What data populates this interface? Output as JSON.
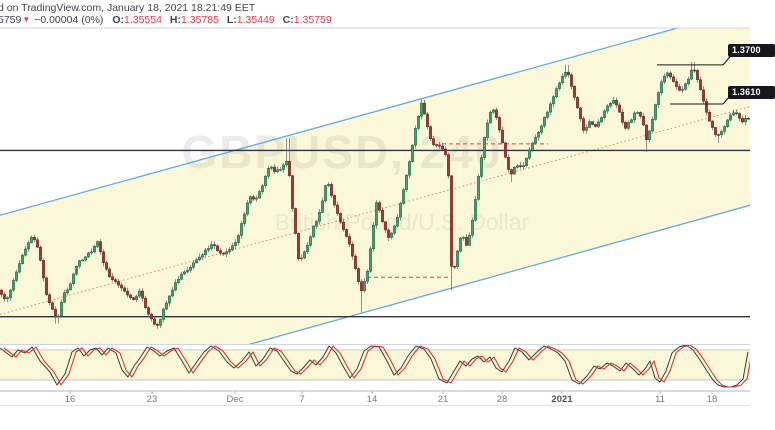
{
  "header": {
    "line1": "d on TradingView.com, January 18, 2021 18:21:49 EET",
    "symbol_price_partial": "5759",
    "direction_arrow": "▼",
    "change": "−0.00004 (0%)",
    "ohlc": [
      {
        "label": "O:",
        "value": "1.35554"
      },
      {
        "label": "H:",
        "value": "1.35785"
      },
      {
        "label": "L:",
        "value": "1.35449"
      },
      {
        "label": "C:",
        "value": "1.35759"
      }
    ]
  },
  "watermark": {
    "line1": "GBPUSD, 240",
    "line2": "British Pound/U.S. Dollar"
  },
  "price_labels": [
    {
      "text": "1.3700"
    },
    {
      "text": "1.3610"
    }
  ],
  "colors": {
    "up_fill": "#4f9e6e",
    "up_border": "#1d6b45",
    "down_fill": "#a03a36",
    "down_border": "#6e2320",
    "wick": "#60636e",
    "channel_line": "#64a9e0",
    "channel_fill": "#fbf8d9",
    "mid_dotted": "#ef8073",
    "level_black": "#2e333e",
    "dashed_red": "#f23645",
    "stoch_k": "#3c3b33",
    "stoch_d": "#e0342f",
    "band_line": "#b2b5be",
    "divider": "#d1d4dc",
    "accent_red": "#f23645",
    "text_dark": "#434651",
    "axis_text": "#787b86"
  },
  "chart_data": {
    "type": "candlestick+stochastic",
    "symbol": "GBPUSD",
    "interval": "240",
    "ylim": [
      1.3056,
      1.3785
    ],
    "ohlc_last": {
      "open": 1.35554,
      "high": 1.35785,
      "low": 1.35449,
      "close": 1.35759
    },
    "channel": {
      "x1": 0,
      "x2": 750,
      "upper": {
        "p1": 1.33537,
        "p2": 1.38311
      },
      "lower": {
        "p1": 1.28968,
        "p2": 1.33767
      }
    },
    "levels_full": [
      {
        "price": 1.3503
      },
      {
        "price": 1.312
      }
    ],
    "levels_short": [
      {
        "price": 1.37,
        "x1": 657,
        "x2": 723,
        "label": "1.3700"
      },
      {
        "price": 1.361,
        "x1": 670,
        "x2": 723,
        "label": "1.3610"
      }
    ],
    "dashed_segments": [
      {
        "price": 1.3518,
        "x1": 442,
        "x2": 548
      },
      {
        "price": 1.3211,
        "x1": 367,
        "x2": 452
      }
    ],
    "price_path": [
      [
        0,
        1.3181
      ],
      [
        6,
        1.3153
      ],
      [
        12,
        1.3192
      ],
      [
        20,
        1.3245
      ],
      [
        27,
        1.3287
      ],
      [
        33,
        1.3305
      ],
      [
        39,
        1.3273
      ],
      [
        46,
        1.3176
      ],
      [
        52,
        1.3139
      ],
      [
        57,
        1.3109
      ],
      [
        63,
        1.3167
      ],
      [
        70,
        1.3194
      ],
      [
        78,
        1.3243
      ],
      [
        86,
        1.3261
      ],
      [
        93,
        1.3273
      ],
      [
        97,
        1.3298
      ],
      [
        103,
        1.3247
      ],
      [
        110,
        1.3211
      ],
      [
        118,
        1.3197
      ],
      [
        126,
        1.3176
      ],
      [
        133,
        1.3155
      ],
      [
        140,
        1.3178
      ],
      [
        147,
        1.3128
      ],
      [
        153,
        1.3107
      ],
      [
        158,
        1.3097
      ],
      [
        164,
        1.3141
      ],
      [
        171,
        1.3178
      ],
      [
        179,
        1.3211
      ],
      [
        188,
        1.3231
      ],
      [
        197,
        1.325
      ],
      [
        206,
        1.3273
      ],
      [
        213,
        1.3289
      ],
      [
        220,
        1.3266
      ],
      [
        228,
        1.3268
      ],
      [
        236,
        1.3291
      ],
      [
        243,
        1.3344
      ],
      [
        249,
        1.3397
      ],
      [
        255,
        1.3388
      ],
      [
        262,
        1.342
      ],
      [
        269,
        1.3467
      ],
      [
        276,
        1.3453
      ],
      [
        283,
        1.3467
      ],
      [
        288,
        1.3485
      ],
      [
        293,
        1.3354
      ],
      [
        299,
        1.3247
      ],
      [
        306,
        1.3273
      ],
      [
        313,
        1.3324
      ],
      [
        320,
        1.3361
      ],
      [
        327,
        1.3441
      ],
      [
        333,
        1.3384
      ],
      [
        341,
        1.3335
      ],
      [
        349,
        1.3289
      ],
      [
        356,
        1.3227
      ],
      [
        361,
        1.3178
      ],
      [
        367,
        1.3215
      ],
      [
        372,
        1.3307
      ],
      [
        377,
        1.3392
      ],
      [
        382,
        1.3342
      ],
      [
        389,
        1.3298
      ],
      [
        396,
        1.3338
      ],
      [
        403,
        1.3404
      ],
      [
        410,
        1.3485
      ],
      [
        416,
        1.3563
      ],
      [
        422,
        1.3614
      ],
      [
        427,
        1.3561
      ],
      [
        432,
        1.3513
      ],
      [
        438,
        1.352
      ],
      [
        444,
        1.3499
      ],
      [
        448,
        1.348
      ],
      [
        452,
        1.3199
      ],
      [
        457,
        1.3268
      ],
      [
        462,
        1.3314
      ],
      [
        467,
        1.328
      ],
      [
        473,
        1.3347
      ],
      [
        479,
        1.3453
      ],
      [
        486,
        1.3554
      ],
      [
        492,
        1.3603
      ],
      [
        498,
        1.3568
      ],
      [
        504,
        1.3503
      ],
      [
        510,
        1.3443
      ],
      [
        516,
        1.3473
      ],
      [
        523,
        1.3462
      ],
      [
        529,
        1.3499
      ],
      [
        536,
        1.3536
      ],
      [
        543,
        1.3568
      ],
      [
        551,
        1.3612
      ],
      [
        559,
        1.3658
      ],
      [
        567,
        1.369
      ],
      [
        572,
        1.3644
      ],
      [
        578,
        1.3598
      ],
      [
        584,
        1.3547
      ],
      [
        590,
        1.357
      ],
      [
        596,
        1.3559
      ],
      [
        602,
        1.3582
      ],
      [
        608,
        1.3605
      ],
      [
        613,
        1.3619
      ],
      [
        619,
        1.3598
      ],
      [
        624,
        1.3552
      ],
      [
        630,
        1.357
      ],
      [
        636,
        1.3593
      ],
      [
        642,
        1.3577
      ],
      [
        647,
        1.3524
      ],
      [
        652,
        1.357
      ],
      [
        657,
        1.3628
      ],
      [
        662,
        1.3663
      ],
      [
        667,
        1.3681
      ],
      [
        672,
        1.3665
      ],
      [
        677,
        1.3646
      ],
      [
        682,
        1.3642
      ],
      [
        688,
        1.3667
      ],
      [
        693,
        1.3695
      ],
      [
        699,
        1.3656
      ],
      [
        705,
        1.36
      ],
      [
        711,
        1.3563
      ],
      [
        717,
        1.3533
      ],
      [
        723,
        1.3552
      ],
      [
        729,
        1.3582
      ],
      [
        735,
        1.3591
      ],
      [
        741,
        1.357
      ],
      [
        747,
        1.35759
      ]
    ],
    "wicks": [
      {
        "x": 57,
        "p": 1.3104
      },
      {
        "x": 158,
        "p": 1.3092
      },
      {
        "x": 288,
        "p": 1.3531
      },
      {
        "x": 361,
        "p": 1.313
      },
      {
        "x": 422,
        "p": 1.3621
      },
      {
        "x": 452,
        "p": 1.3181
      },
      {
        "x": 512,
        "p": 1.343
      },
      {
        "x": 567,
        "p": 1.37
      },
      {
        "x": 647,
        "p": 1.3499
      },
      {
        "x": 693,
        "p": 1.3707
      },
      {
        "x": 718,
        "p": 1.352
      }
    ],
    "stochastic": {
      "bands": [
        80,
        20
      ],
      "k_points": [
        [
          0,
          84
        ],
        [
          12,
          66
        ],
        [
          18,
          80
        ],
        [
          25,
          74
        ],
        [
          32,
          86
        ],
        [
          40,
          58
        ],
        [
          50,
          36
        ],
        [
          57,
          10
        ],
        [
          65,
          32
        ],
        [
          72,
          76
        ],
        [
          78,
          84
        ],
        [
          84,
          68
        ],
        [
          90,
          80
        ],
        [
          96,
          84
        ],
        [
          102,
          70
        ],
        [
          108,
          84
        ],
        [
          116,
          74
        ],
        [
          122,
          40
        ],
        [
          128,
          26
        ],
        [
          134,
          48
        ],
        [
          140,
          64
        ],
        [
          147,
          86
        ],
        [
          154,
          78
        ],
        [
          160,
          68
        ],
        [
          167,
          78
        ],
        [
          174,
          84
        ],
        [
          182,
          58
        ],
        [
          189,
          34
        ],
        [
          196,
          54
        ],
        [
          204,
          76
        ],
        [
          211,
          88
        ],
        [
          219,
          78
        ],
        [
          227,
          56
        ],
        [
          234,
          44
        ],
        [
          242,
          58
        ],
        [
          249,
          76
        ],
        [
          256,
          48
        ],
        [
          263,
          62
        ],
        [
          270,
          84
        ],
        [
          277,
          78
        ],
        [
          284,
          58
        ],
        [
          291,
          38
        ],
        [
          297,
          32
        ],
        [
          304,
          46
        ],
        [
          310,
          60
        ],
        [
          316,
          50
        ],
        [
          323,
          66
        ],
        [
          329,
          88
        ],
        [
          336,
          74
        ],
        [
          343,
          48
        ],
        [
          350,
          24
        ],
        [
          357,
          42
        ],
        [
          364,
          78
        ],
        [
          371,
          88
        ],
        [
          379,
          86
        ],
        [
          387,
          58
        ],
        [
          394,
          30
        ],
        [
          401,
          44
        ],
        [
          408,
          68
        ],
        [
          416,
          88
        ],
        [
          424,
          82
        ],
        [
          431,
          62
        ],
        [
          439,
          22
        ],
        [
          447,
          14
        ],
        [
          454,
          38
        ],
        [
          460,
          58
        ],
        [
          466,
          48
        ],
        [
          472,
          62
        ],
        [
          478,
          68
        ],
        [
          484,
          56
        ],
        [
          490,
          66
        ],
        [
          496,
          44
        ],
        [
          502,
          36
        ],
        [
          509,
          58
        ],
        [
          515,
          84
        ],
        [
          522,
          76
        ],
        [
          529,
          60
        ],
        [
          537,
          76
        ],
        [
          544,
          88
        ],
        [
          551,
          82
        ],
        [
          558,
          74
        ],
        [
          565,
          58
        ],
        [
          572,
          20
        ],
        [
          579,
          12
        ],
        [
          587,
          28
        ],
        [
          594,
          48
        ],
        [
          600,
          42
        ],
        [
          607,
          54
        ],
        [
          613,
          48
        ],
        [
          620,
          38
        ],
        [
          626,
          54
        ],
        [
          633,
          42
        ],
        [
          639,
          30
        ],
        [
          645,
          42
        ],
        [
          650,
          58
        ],
        [
          655,
          24
        ],
        [
          660,
          16
        ],
        [
          666,
          38
        ],
        [
          672,
          74
        ],
        [
          679,
          86
        ],
        [
          686,
          90
        ],
        [
          693,
          80
        ],
        [
          700,
          60
        ],
        [
          707,
          38
        ],
        [
          713,
          20
        ],
        [
          718,
          10
        ],
        [
          724,
          6
        ],
        [
          731,
          6
        ],
        [
          737,
          10
        ],
        [
          743,
          22
        ],
        [
          748,
          76
        ]
      ]
    },
    "x_axis": {
      "labels": [
        {
          "text": "16",
          "x": 70
        },
        {
          "text": "23",
          "x": 152
        },
        {
          "text": "Dec",
          "x": 235
        },
        {
          "text": "7",
          "x": 302
        },
        {
          "text": "14",
          "x": 372
        },
        {
          "text": "21",
          "x": 443
        },
        {
          "text": "28",
          "x": 502
        },
        {
          "text": "2021",
          "x": 562,
          "bold": true
        },
        {
          "text": "11",
          "x": 660
        },
        {
          "text": "18",
          "x": 712
        }
      ]
    }
  }
}
